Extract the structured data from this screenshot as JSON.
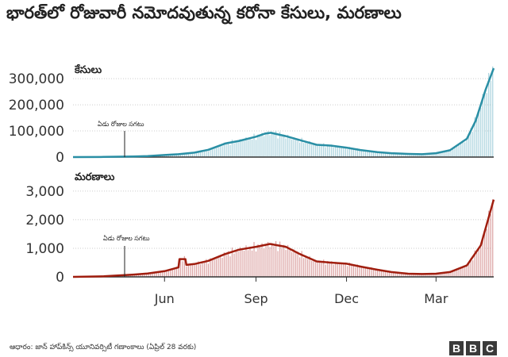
{
  "title": "భారత్‌లో రోజువారీ నమోదవుతున్న కరోనా కేసులు, మరణాలు",
  "source": "ఆధారం: జాన్ హాప్‌కిన్స్ యూనివర్సిటీ గణాంకాలు (ఏప్రిల్ 28 వరకు)",
  "logo": [
    "B",
    "B",
    "C"
  ],
  "colors": {
    "cases_line": "#2a8fa5",
    "cases_bar": "#a9d2dd",
    "deaths_line": "#a01e0f",
    "deaths_bar": "#dba1a1",
    "axis": "#333333",
    "grid": "#cccccc"
  },
  "chart_data": [
    {
      "type": "area",
      "label": "కేసులు",
      "annotation": "ఏడు రోజుల సగటు",
      "x_axis_months": [
        "Jun",
        "Sep",
        "Dec",
        "Mar"
      ],
      "y_ticks": [
        0,
        100000,
        200000,
        300000
      ],
      "y_tick_labels": [
        "0",
        "100,000",
        "200,000",
        "300,000"
      ],
      "ylim": [
        0,
        340000
      ],
      "seven_day_average": [
        [
          "2020-03-01",
          0
        ],
        [
          "2020-04-01",
          500
        ],
        [
          "2020-05-01",
          2000
        ],
        [
          "2020-05-15",
          4000
        ],
        [
          "2020-06-01",
          8000
        ],
        [
          "2020-06-15",
          11000
        ],
        [
          "2020-07-01",
          17000
        ],
        [
          "2020-07-15",
          28000
        ],
        [
          "2020-08-01",
          52000
        ],
        [
          "2020-08-15",
          62000
        ],
        [
          "2020-09-01",
          78000
        ],
        [
          "2020-09-10",
          90000
        ],
        [
          "2020-09-16",
          93000
        ],
        [
          "2020-10-01",
          80000
        ],
        [
          "2020-10-15",
          65000
        ],
        [
          "2020-11-01",
          47000
        ],
        [
          "2020-11-15",
          44000
        ],
        [
          "2020-12-01",
          36000
        ],
        [
          "2020-12-15",
          27000
        ],
        [
          "2021-01-01",
          19000
        ],
        [
          "2021-01-15",
          15000
        ],
        [
          "2021-02-01",
          12000
        ],
        [
          "2021-02-15",
          11000
        ],
        [
          "2021-03-01",
          15000
        ],
        [
          "2021-03-15",
          26000
        ],
        [
          "2021-04-01",
          70000
        ],
        [
          "2021-04-10",
          140000
        ],
        [
          "2021-04-20",
          260000
        ],
        [
          "2021-04-28",
          340000
        ]
      ]
    },
    {
      "type": "area",
      "label": "మరణాలు",
      "annotation": "ఏడు రోజుల సగటు",
      "x_axis_months": [
        "Jun",
        "Sep",
        "Dec",
        "Mar"
      ],
      "y_ticks": [
        0,
        1000,
        2000,
        3000
      ],
      "y_tick_labels": [
        "0",
        "1,000",
        "2,000",
        "3,000"
      ],
      "ylim": [
        0,
        3300
      ],
      "seven_day_average": [
        [
          "2020-03-01",
          0
        ],
        [
          "2020-04-01",
          20
        ],
        [
          "2020-05-01",
          80
        ],
        [
          "2020-05-15",
          120
        ],
        [
          "2020-06-01",
          200
        ],
        [
          "2020-06-15",
          330
        ],
        [
          "2020-06-16",
          620
        ],
        [
          "2020-06-22",
          620
        ],
        [
          "2020-06-23",
          420
        ],
        [
          "2020-07-01",
          450
        ],
        [
          "2020-07-15",
          560
        ],
        [
          "2020-08-01",
          800
        ],
        [
          "2020-08-15",
          950
        ],
        [
          "2020-09-01",
          1050
        ],
        [
          "2020-09-15",
          1150
        ],
        [
          "2020-10-01",
          1050
        ],
        [
          "2020-10-15",
          800
        ],
        [
          "2020-11-01",
          540
        ],
        [
          "2020-11-15",
          500
        ],
        [
          "2020-12-01",
          460
        ],
        [
          "2020-12-15",
          360
        ],
        [
          "2021-01-01",
          250
        ],
        [
          "2021-01-15",
          170
        ],
        [
          "2021-02-01",
          110
        ],
        [
          "2021-02-15",
          100
        ],
        [
          "2021-03-01",
          110
        ],
        [
          "2021-03-15",
          170
        ],
        [
          "2021-04-01",
          400
        ],
        [
          "2021-04-15",
          1100
        ],
        [
          "2021-04-28",
          2700
        ]
      ]
    }
  ]
}
